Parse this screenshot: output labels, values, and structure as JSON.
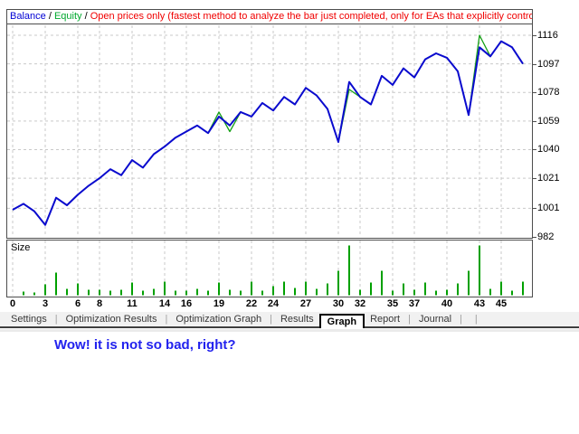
{
  "header": {
    "balance_label": "Balance",
    "equity_label": "Equity",
    "separator": " / ",
    "description": "Open prices only (fastest method to analyze the bar just completed, only for EAs that explicitly control bar opening)"
  },
  "colors": {
    "balance_line": "#0a0ace",
    "equity_line": "#15a015",
    "size_bar": "#00a000",
    "grid": "#c9c9c9",
    "legend_balance": "#0000d4",
    "legend_equity": "#00a82d",
    "legend_description": "#f00000",
    "message_text": "#2222ee"
  },
  "chart_data": [
    {
      "type": "line",
      "title": "",
      "x_range": [
        0,
        47
      ],
      "ylim": [
        982,
        1122
      ],
      "y_axis_side": "right",
      "grid": "dashed",
      "y_ticks": [
        1116,
        1097,
        1078,
        1059,
        1040,
        1021,
        1001,
        982
      ],
      "x_ticks": [
        0,
        3,
        6,
        8,
        11,
        14,
        16,
        19,
        22,
        24,
        27,
        30,
        32,
        35,
        37,
        40,
        43,
        45
      ],
      "series": [
        {
          "name": "Balance",
          "values": [
            1000,
            1004,
            999,
            990,
            1008,
            1003,
            1010,
            1016,
            1021,
            1027,
            1023,
            1033,
            1028,
            1037,
            1042,
            1048,
            1052,
            1056,
            1051,
            1062,
            1056,
            1065,
            1062,
            1071,
            1066,
            1075,
            1070,
            1081,
            1076,
            1067,
            1045,
            1085,
            1075,
            1070,
            1089,
            1083,
            1094,
            1088,
            1100,
            1104,
            1101,
            1092,
            1063,
            1108,
            1102,
            1112,
            1108,
            1097
          ]
        },
        {
          "name": "Equity",
          "values": [
            1000,
            1004,
            999,
            990,
            1008,
            1003,
            1010,
            1016,
            1021,
            1027,
            1023,
            1033,
            1028,
            1037,
            1042,
            1048,
            1052,
            1056,
            1051,
            1065,
            1052,
            1065,
            1062,
            1071,
            1066,
            1075,
            1070,
            1081,
            1076,
            1067,
            1045,
            1080,
            1075,
            1070,
            1089,
            1083,
            1094,
            1088,
            1100,
            1104,
            1101,
            1092,
            1063,
            1116,
            1102,
            1112,
            1108,
            1097
          ]
        }
      ]
    },
    {
      "type": "bar",
      "title": "Size",
      "units": "relative",
      "values": [
        0,
        4,
        3,
        12,
        25,
        7,
        13,
        6,
        6,
        5,
        6,
        14,
        5,
        7,
        15,
        5,
        5,
        7,
        5,
        14,
        6,
        5,
        15,
        5,
        10,
        15,
        8,
        15,
        7,
        13,
        27,
        55,
        6,
        14,
        27,
        5,
        13,
        6,
        14,
        5,
        6,
        13,
        27,
        55,
        7,
        15,
        5,
        15
      ]
    }
  ],
  "tabs": {
    "items": [
      "Settings",
      "Optimization Results",
      "Optimization Graph",
      "Results",
      "Graph",
      "Report",
      "Journal"
    ],
    "active": "Graph",
    "active_index": 4
  },
  "message": {
    "text": "Wow! it is not so bad, right?"
  }
}
